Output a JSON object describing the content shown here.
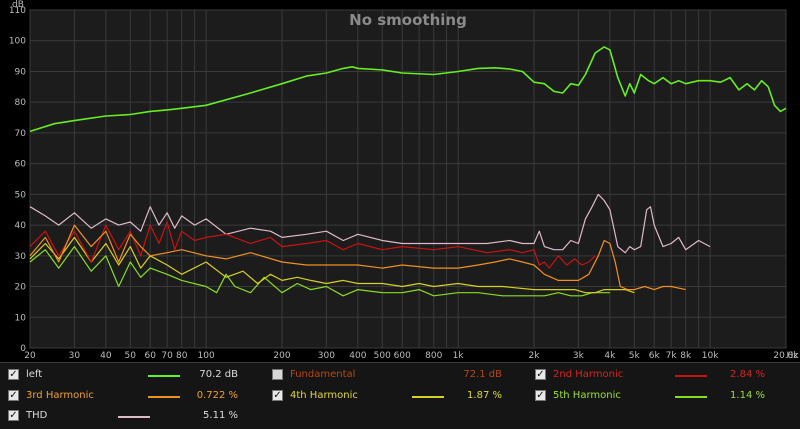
{
  "chart_data": {
    "type": "line",
    "title": "No smoothing",
    "ylabel": "dB",
    "xlabel": "Hz",
    "xscale": "log",
    "xlim": [
      20,
      20000
    ],
    "ylim": [
      0,
      110
    ],
    "grid": true,
    "y_ticks": [
      "0",
      "10",
      "20",
      "30",
      "40",
      "50",
      "60",
      "70",
      "80",
      "90",
      "100",
      "110"
    ],
    "x_ticks": [
      {
        "v": 20,
        "label": "20"
      },
      {
        "v": 30,
        "label": "30"
      },
      {
        "v": 40,
        "label": "40"
      },
      {
        "v": 50,
        "label": "50"
      },
      {
        "v": 60,
        "label": "60"
      },
      {
        "v": 70,
        "label": "70"
      },
      {
        "v": 80,
        "label": "80"
      },
      {
        "v": 100,
        "label": "100"
      },
      {
        "v": 200,
        "label": "200"
      },
      {
        "v": 300,
        "label": "300"
      },
      {
        "v": 400,
        "label": "400"
      },
      {
        "v": 500,
        "label": "500"
      },
      {
        "v": 600,
        "label": "600"
      },
      {
        "v": 800,
        "label": "800"
      },
      {
        "v": 1000,
        "label": "1k"
      },
      {
        "v": 2000,
        "label": "2k"
      },
      {
        "v": 3000,
        "label": "3k"
      },
      {
        "v": 4000,
        "label": "4k"
      },
      {
        "v": 5000,
        "label": "5k"
      },
      {
        "v": 6000,
        "label": "6k"
      },
      {
        "v": 7000,
        "label": "7k"
      },
      {
        "v": 8000,
        "label": "8k"
      },
      {
        "v": 10000,
        "label": "10k"
      },
      {
        "v": 20000,
        "label": "20.0k"
      }
    ],
    "series": [
      {
        "name": "left",
        "color": "#66ee22",
        "x": [
          20,
          25,
          30,
          40,
          50,
          60,
          70,
          80,
          100,
          150,
          200,
          250,
          300,
          350,
          380,
          400,
          500,
          600,
          800,
          1000,
          1200,
          1400,
          1600,
          1800,
          2000,
          2200,
          2400,
          2600,
          2800,
          3000,
          3200,
          3500,
          3800,
          4000,
          4300,
          4600,
          4800,
          5000,
          5300,
          5700,
          6000,
          6500,
          7000,
          7500,
          8000,
          9000,
          10000,
          11000,
          12000,
          13000,
          14000,
          15000,
          16000,
          17000,
          18000,
          19000,
          20000
        ],
        "values": [
          70.5,
          73,
          74,
          75.5,
          76,
          77,
          77.5,
          78,
          79,
          83,
          86,
          88.5,
          89.5,
          91,
          91.5,
          91,
          90.5,
          89.5,
          89,
          90,
          91,
          91.2,
          90.8,
          90,
          86.5,
          86,
          83.5,
          83,
          86,
          85.5,
          89,
          96,
          98,
          97,
          88,
          82,
          86,
          83,
          89,
          87,
          86,
          88,
          86,
          87,
          86,
          87,
          87,
          86.5,
          88,
          84,
          86,
          84,
          87,
          85,
          79,
          77,
          78
        ]
      },
      {
        "name": "2nd Harmonic",
        "color": "#cc1111",
        "x": [
          20,
          23,
          26,
          30,
          35,
          40,
          45,
          50,
          55,
          60,
          65,
          70,
          75,
          80,
          90,
          100,
          120,
          150,
          180,
          200,
          250,
          300,
          350,
          400,
          500,
          600,
          800,
          1000,
          1300,
          1600,
          1800,
          2000,
          2100,
          2200,
          2300,
          2500,
          2700,
          2900,
          3100,
          3300,
          3500
        ],
        "values": [
          33,
          38,
          30,
          38,
          28,
          40,
          32,
          38,
          30,
          40,
          34,
          41,
          32,
          38,
          35,
          36,
          37,
          34,
          36,
          33,
          34,
          35,
          32,
          34,
          32,
          33,
          32,
          33,
          31,
          32,
          31,
          32,
          27,
          28,
          26,
          30,
          27,
          29,
          27,
          28,
          30
        ]
      },
      {
        "name": "3rd Harmonic",
        "color": "#f09020",
        "x": [
          20,
          23,
          26,
          30,
          35,
          40,
          45,
          50,
          55,
          60,
          70,
          80,
          100,
          120,
          150,
          200,
          250,
          300,
          350,
          400,
          500,
          600,
          800,
          1000,
          1200,
          1400,
          1600,
          1800,
          2000,
          2200,
          2500,
          2800,
          3000,
          3300,
          3600,
          3800,
          4000,
          4200,
          4400,
          4700,
          5000,
          5500,
          6000,
          6500,
          7000,
          8000
        ],
        "values": [
          30,
          36,
          28,
          40,
          33,
          38,
          28,
          37,
          33,
          30,
          31,
          32,
          30,
          29,
          31,
          28,
          27,
          27,
          27,
          27,
          26,
          27,
          26,
          26,
          27,
          28,
          29,
          28,
          27,
          24,
          22,
          22,
          22,
          24,
          30,
          35,
          34,
          28,
          20,
          19,
          19,
          20,
          19,
          20,
          20,
          19
        ]
      },
      {
        "name": "4th Harmonic",
        "color": "#d8d020",
        "x": [
          20,
          23,
          26,
          30,
          35,
          40,
          45,
          50,
          55,
          60,
          70,
          80,
          100,
          120,
          140,
          160,
          180,
          200,
          230,
          260,
          300,
          350,
          400,
          500,
          600,
          700,
          800,
          1000,
          1200,
          1500,
          2000,
          2300,
          2600,
          2900,
          3200,
          3500,
          3800,
          4000,
          4300,
          4600,
          5000
        ],
        "values": [
          29,
          34,
          29,
          36,
          28,
          34,
          27,
          33,
          26,
          30,
          27,
          24,
          28,
          23,
          25,
          21,
          24,
          22,
          23,
          22,
          21,
          22,
          21,
          21,
          20,
          21,
          20,
          21,
          20,
          20,
          19,
          19,
          19,
          19,
          18,
          18,
          19,
          19,
          19,
          19,
          18
        ]
      },
      {
        "name": "5th Harmonic",
        "color": "#88dd22",
        "x": [
          20,
          23,
          26,
          30,
          35,
          40,
          45,
          50,
          55,
          60,
          70,
          80,
          100,
          110,
          120,
          130,
          150,
          170,
          200,
          230,
          260,
          300,
          350,
          400,
          500,
          600,
          700,
          800,
          1000,
          1200,
          1500,
          2000,
          2200,
          2500,
          2800,
          3100,
          3400,
          3700,
          4000
        ],
        "values": [
          28,
          32,
          26,
          33,
          25,
          30,
          20,
          28,
          23,
          26,
          24,
          22,
          20,
          18,
          24,
          20,
          18,
          23,
          18,
          21,
          19,
          20,
          17,
          19,
          18,
          18,
          19,
          17,
          18,
          18,
          17,
          17,
          17,
          18,
          17,
          17,
          18,
          18,
          18
        ]
      },
      {
        "name": "THD",
        "color": "#e0b8c8",
        "x": [
          20,
          23,
          26,
          30,
          35,
          40,
          45,
          50,
          55,
          60,
          65,
          70,
          75,
          80,
          90,
          100,
          120,
          150,
          180,
          200,
          250,
          300,
          350,
          400,
          500,
          600,
          800,
          1000,
          1300,
          1600,
          1800,
          2000,
          2100,
          2200,
          2400,
          2600,
          2800,
          3000,
          3200,
          3400,
          3600,
          3800,
          4000,
          4300,
          4600,
          4800,
          5000,
          5300,
          5600,
          5800,
          6000,
          6500,
          7000,
          7500,
          8000,
          9000,
          10000
        ],
        "values": [
          46,
          43,
          40,
          44,
          39,
          42,
          40,
          41,
          38,
          46,
          40,
          44,
          39,
          43,
          40,
          42,
          37,
          39,
          38,
          36,
          37,
          38,
          35,
          37,
          35,
          34,
          34,
          34,
          34,
          35,
          34,
          34,
          38,
          33,
          32,
          32,
          35,
          34,
          42,
          46,
          50,
          48,
          45,
          33,
          31,
          33,
          32,
          33,
          45,
          46,
          40,
          33,
          34,
          36,
          32,
          35,
          33
        ]
      }
    ]
  },
  "legend": [
    {
      "label": "left",
      "value": "70.2 dB",
      "checked": true,
      "color": "#66ee22",
      "text_color": "#dddddd",
      "value_color": "#dddddd"
    },
    {
      "label": "Fundamental",
      "value": "72.1 dB",
      "checked": false,
      "color": "",
      "text_color": "#b84810",
      "value_color": "#b84810"
    },
    {
      "label": "2nd Harmonic",
      "value": "2.84 %",
      "checked": true,
      "color": "#cc1111",
      "text_color": "#dd2222",
      "value_color": "#dd2222"
    },
    {
      "label": "3rd Harmonic",
      "value": "0.722 %",
      "checked": true,
      "color": "#f09020",
      "text_color": "#f0a030",
      "value_color": "#f0a030"
    },
    {
      "label": "4th Harmonic",
      "value": "1.87 %",
      "checked": true,
      "color": "#d8d020",
      "text_color": "#e0d830",
      "value_color": "#e0d830"
    },
    {
      "label": "5th Harmonic",
      "value": "1.14 %",
      "checked": true,
      "color": "#88dd22",
      "text_color": "#99e030",
      "value_color": "#99e030"
    },
    {
      "label": "THD",
      "value": "5.11 %",
      "checked": true,
      "color": "#e0b8c8",
      "text_color": "#dddddd",
      "value_color": "#dddddd"
    }
  ]
}
